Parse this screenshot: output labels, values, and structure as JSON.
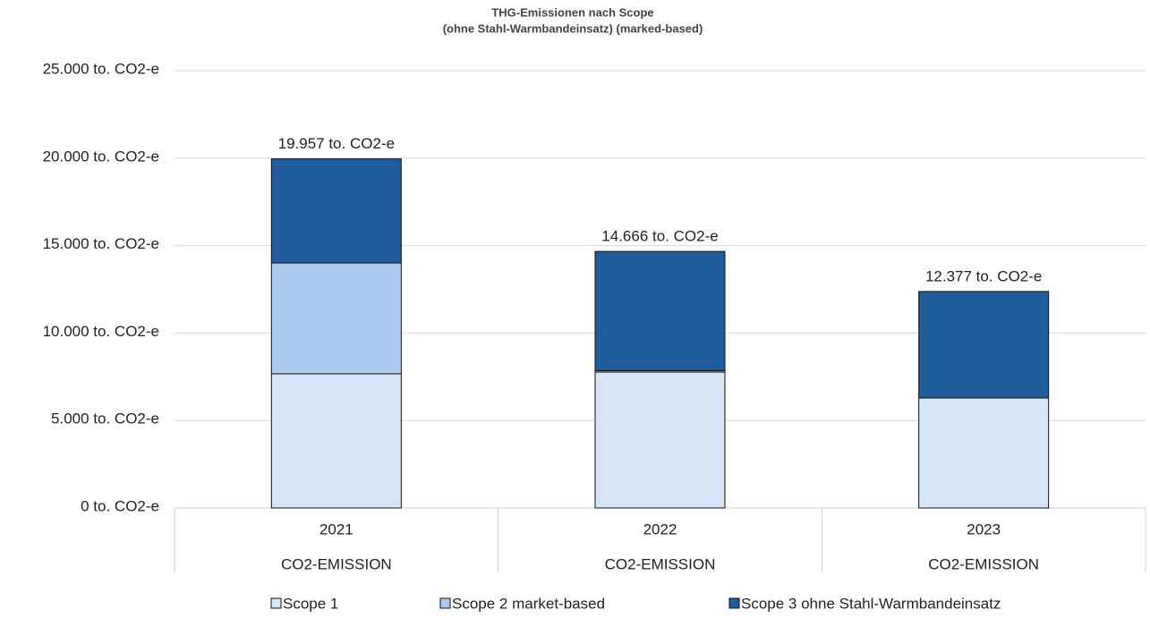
{
  "chart_data": {
    "type": "stacked_bar",
    "title": "THG-Emissionen nach Scope",
    "subtitle": "(ohne Stahl-Warmbandeinsatz) (marked-based)",
    "categories": [
      "2021",
      "2022",
      "2023"
    ],
    "sub_categories": [
      "CO2-EMISSION",
      "CO2-EMISSION",
      "CO2-EMISSION"
    ],
    "series": [
      {
        "name": "Scope 1",
        "color": "#d6e6f7",
        "values": [
          7670,
          7770,
          6290
        ]
      },
      {
        "name": "Scope 2 market-based",
        "color": "#a9cbee",
        "values": [
          6340,
          80,
          0
        ]
      },
      {
        "name": "Scope 3 ohne Stahl-Warmbandeinsatz",
        "color": "#1f5c9c",
        "values": [
          5947,
          6816,
          6087
        ]
      }
    ],
    "totals": [
      19957,
      14666,
      12377
    ],
    "total_labels": [
      "19.957 to. CO2-e",
      "14.666 to. CO2-e",
      "12.377 to. CO2-e"
    ],
    "ylim": [
      0,
      25000
    ],
    "yticks": [
      {
        "value": 0,
        "label": "0 to. CO2-e"
      },
      {
        "value": 5000,
        "label": "5.000 to. CO2-e"
      },
      {
        "value": 10000,
        "label": "10.000 to. CO2-e"
      },
      {
        "value": 15000,
        "label": "15.000 to. CO2-e"
      },
      {
        "value": 20000,
        "label": "20.000 to. CO2-e"
      },
      {
        "value": 25000,
        "label": "25.000 to. CO2-e"
      }
    ],
    "grid": true,
    "legend": "bottom"
  }
}
